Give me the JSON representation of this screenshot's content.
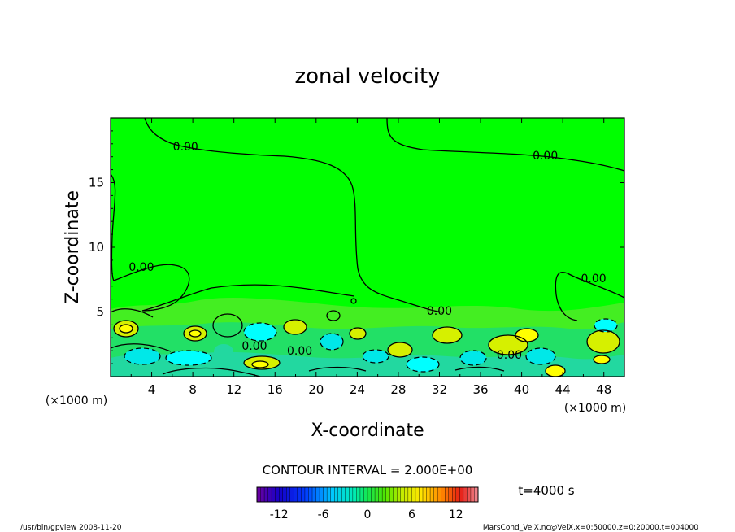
{
  "chart_data": {
    "type": "contour",
    "title": "zonal velocity",
    "xlabel": "X-coordinate",
    "ylabel": "Z-coordinate",
    "x_unit_label": "(×1000 m)",
    "y_unit_label": "(×1000 m)",
    "xlim": [
      0,
      50
    ],
    "ylim": [
      0,
      20
    ],
    "x_ticks": [
      4,
      8,
      12,
      16,
      20,
      24,
      28,
      32,
      36,
      40,
      44,
      48
    ],
    "y_ticks": [
      5,
      10,
      15
    ],
    "contour_interval_text": "CONTOUR INTERVAL = 2.000E+00",
    "time_text": "t=4000 s",
    "colorbar_ticks": [
      -12,
      -6,
      0,
      6,
      12
    ],
    "colorbar_range": [
      -15,
      15
    ],
    "contour_labels": [
      {
        "text": "0.00",
        "x": 7.3,
        "z": 17.8
      },
      {
        "text": "0.00",
        "x": 42.3,
        "z": 17.1
      },
      {
        "text": "0.00",
        "x": 3.0,
        "z": 8.5
      },
      {
        "text": "0.00",
        "x": 47.0,
        "z": 7.6
      },
      {
        "text": "0.00",
        "x": 32.0,
        "z": 5.1
      },
      {
        "text": "0.00",
        "x": 14.0,
        "z": 2.4
      },
      {
        "text": "0.00",
        "x": 18.4,
        "z": 2.0
      },
      {
        "text": "0.00",
        "x": 38.8,
        "z": 1.7
      }
    ]
  },
  "footer": {
    "left": "/usr/bin/gpview  2008-11-20",
    "right": "MarsCond_VelX.nc@VelX,x=0:50000,z=0:20000,t=004000"
  },
  "colors": {
    "field_background": "#00ff00",
    "contour_line": "#000000"
  }
}
